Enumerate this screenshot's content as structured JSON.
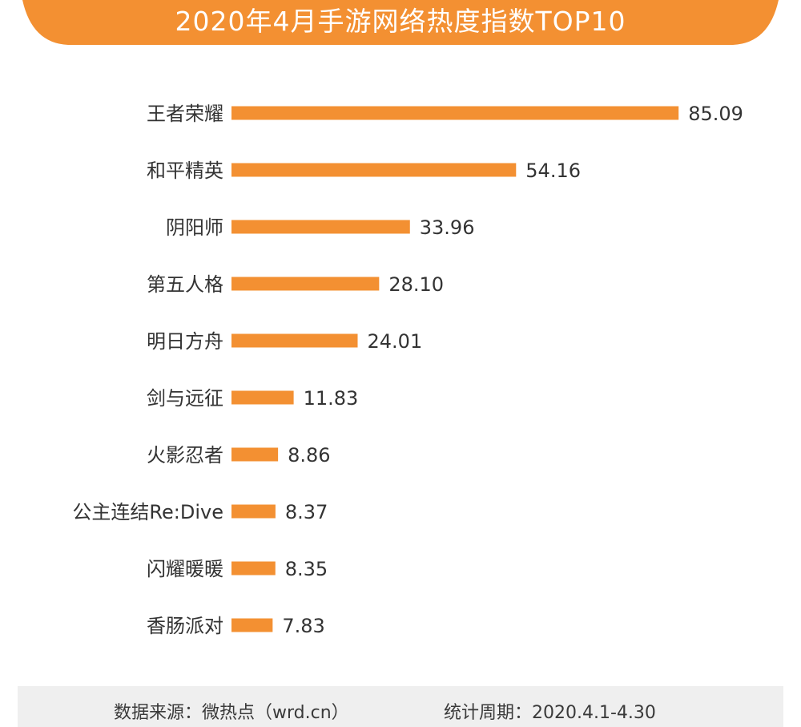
{
  "header": {
    "title": "2020年4月手游网络热度指数TOP10",
    "bg_color": "#f39032"
  },
  "chart_data": {
    "type": "bar",
    "orientation": "horizontal",
    "title": "2020年4月手游网络热度指数TOP10",
    "bar_color": "#f39032",
    "categories": [
      "王者荣耀",
      "和平精英",
      "阴阳师",
      "第五人格",
      "明日方舟",
      "剑与远征",
      "火影忍者",
      "公主连结Re:Dive",
      "闪耀暖暖",
      "香肠派对"
    ],
    "values": [
      85.09,
      54.16,
      33.96,
      28.1,
      24.01,
      11.83,
      8.86,
      8.37,
      8.35,
      7.83
    ],
    "value_labels": [
      "85.09",
      "54.16",
      "33.96",
      "28.10",
      "24.01",
      "11.83",
      "8.86",
      "8.37",
      "8.35",
      "7.83"
    ],
    "grid": false,
    "legend": "none"
  },
  "footer": {
    "source": "数据来源：微热点（wrd.cn）",
    "period": "统计周期：2020.4.1-4.30"
  }
}
